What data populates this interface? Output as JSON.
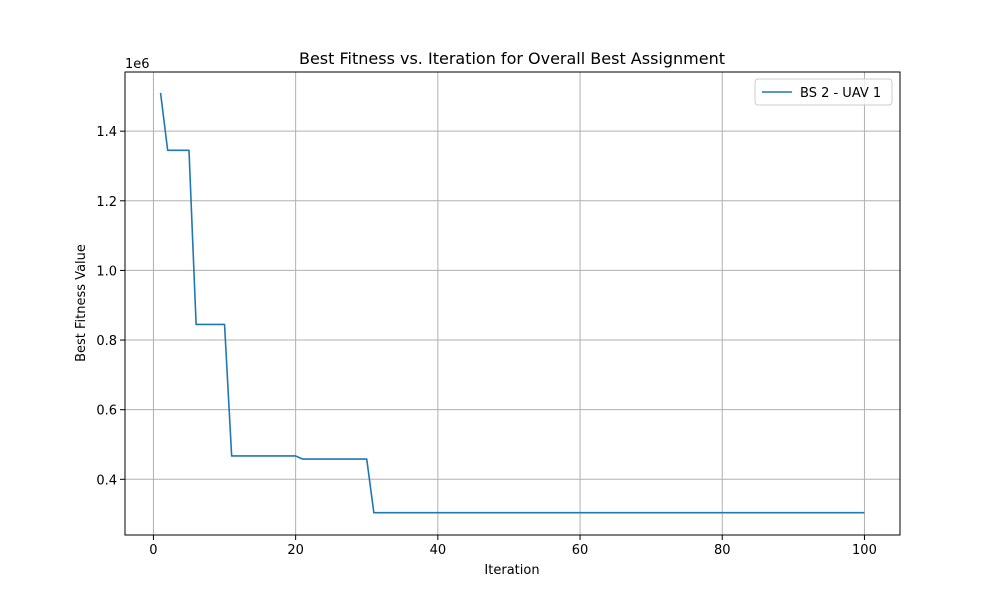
{
  "chart_data": {
    "type": "line",
    "title": "Best Fitness vs. Iteration for Overall Best Assignment",
    "xlabel": "Iteration",
    "ylabel": "Best Fitness Value",
    "y_scale_label": "1e6",
    "y_scale": 1000000,
    "xlim": [
      -4,
      105
    ],
    "ylim": [
      240000,
      1570000
    ],
    "x_ticks": [
      0,
      20,
      40,
      60,
      80,
      100
    ],
    "x_tick_labels": [
      "0",
      "20",
      "40",
      "60",
      "80",
      "100"
    ],
    "y_ticks": [
      400000,
      600000,
      800000,
      1000000,
      1200000,
      1400000
    ],
    "y_tick_labels": [
      "0.4",
      "0.6",
      "0.8",
      "1.0",
      "1.2",
      "1.4"
    ],
    "grid": true,
    "legend_position": "top-right",
    "colors": {
      "series": "#1f77b4",
      "grid": "#b0b0b0",
      "axes": "#000000"
    },
    "series": [
      {
        "name": "BS 2 - UAV 1",
        "x": [
          1,
          2,
          3,
          4,
          5,
          6,
          7,
          8,
          9,
          10,
          11,
          12,
          13,
          14,
          15,
          16,
          17,
          18,
          19,
          20,
          21,
          22,
          23,
          24,
          25,
          26,
          27,
          28,
          29,
          30,
          31,
          32,
          33,
          34,
          35,
          36,
          37,
          38,
          39,
          40,
          41,
          42,
          43,
          44,
          45,
          46,
          47,
          48,
          49,
          50,
          51,
          52,
          53,
          54,
          55,
          56,
          57,
          58,
          59,
          60,
          61,
          62,
          63,
          64,
          65,
          66,
          67,
          68,
          69,
          70,
          71,
          72,
          73,
          74,
          75,
          76,
          77,
          78,
          79,
          80,
          81,
          82,
          83,
          84,
          85,
          86,
          87,
          88,
          89,
          90,
          91,
          92,
          93,
          94,
          95,
          96,
          97,
          98,
          99,
          100
        ],
        "values": [
          1510000,
          1345000,
          1345000,
          1345000,
          1345000,
          845000,
          845000,
          845000,
          845000,
          845000,
          467000,
          467000,
          467000,
          467000,
          467000,
          467000,
          467000,
          467000,
          467000,
          467000,
          458000,
          458000,
          458000,
          458000,
          458000,
          458000,
          458000,
          458000,
          458000,
          458000,
          304000,
          304000,
          304000,
          304000,
          304000,
          304000,
          304000,
          304000,
          304000,
          304000,
          304000,
          304000,
          304000,
          304000,
          304000,
          304000,
          304000,
          304000,
          304000,
          304000,
          304000,
          304000,
          304000,
          304000,
          304000,
          304000,
          304000,
          304000,
          304000,
          304000,
          304000,
          304000,
          304000,
          304000,
          304000,
          304000,
          304000,
          304000,
          304000,
          304000,
          304000,
          304000,
          304000,
          304000,
          304000,
          304000,
          304000,
          304000,
          304000,
          304000,
          304000,
          304000,
          304000,
          304000,
          304000,
          304000,
          304000,
          304000,
          304000,
          304000,
          304000,
          304000,
          304000,
          304000,
          304000,
          304000,
          304000,
          304000,
          304000,
          304000
        ]
      }
    ]
  }
}
